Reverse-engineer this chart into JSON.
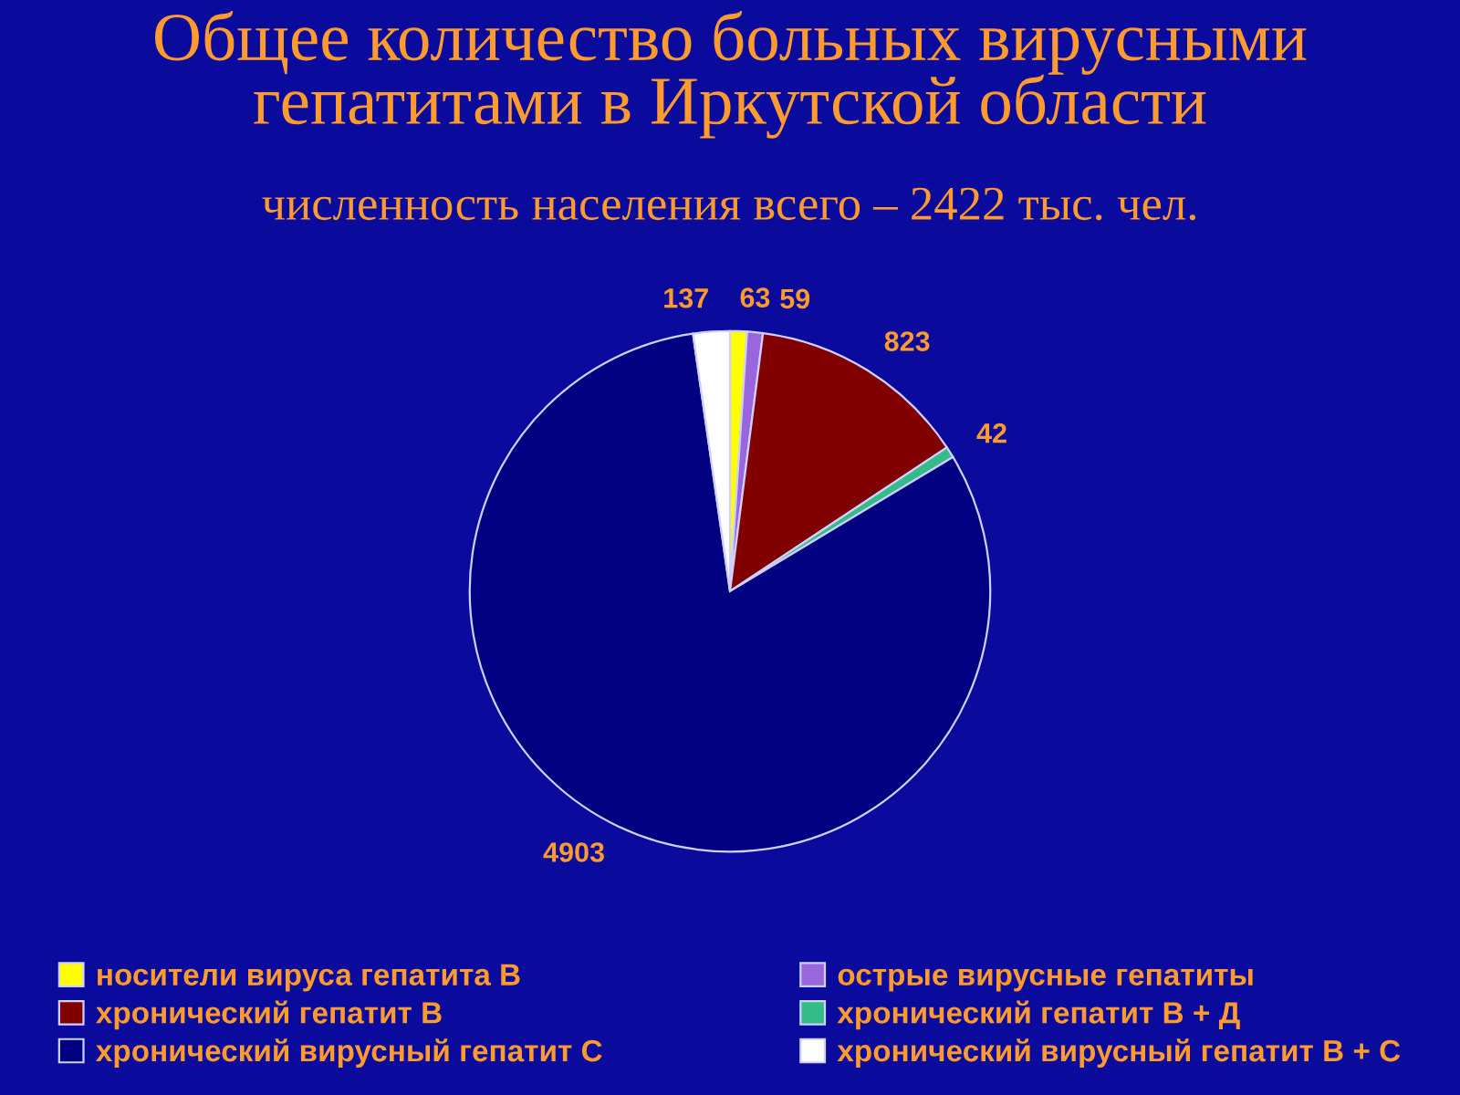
{
  "chart_data": {
    "type": "pie",
    "title": "Общее количество больных вирусными гепатитами в Иркутской области",
    "subtitle": "численность населения всего – 2422 тыс. чел.",
    "categories": [
      "носители вируса гепатита В",
      "острые вирусные гепатиты",
      "хронический гепатит В",
      "хронический гепатит В + Д",
      "хронический вирусный гепатит С",
      "хронический вирусный гепатит В + С"
    ],
    "values": [
      63,
      59,
      823,
      42,
      4903,
      137
    ],
    "colors": [
      "#ffff00",
      "#9966dd",
      "#800000",
      "#33bb88",
      "#000080",
      "#ffffff"
    ],
    "data_labels": true,
    "legend": "bottom"
  }
}
